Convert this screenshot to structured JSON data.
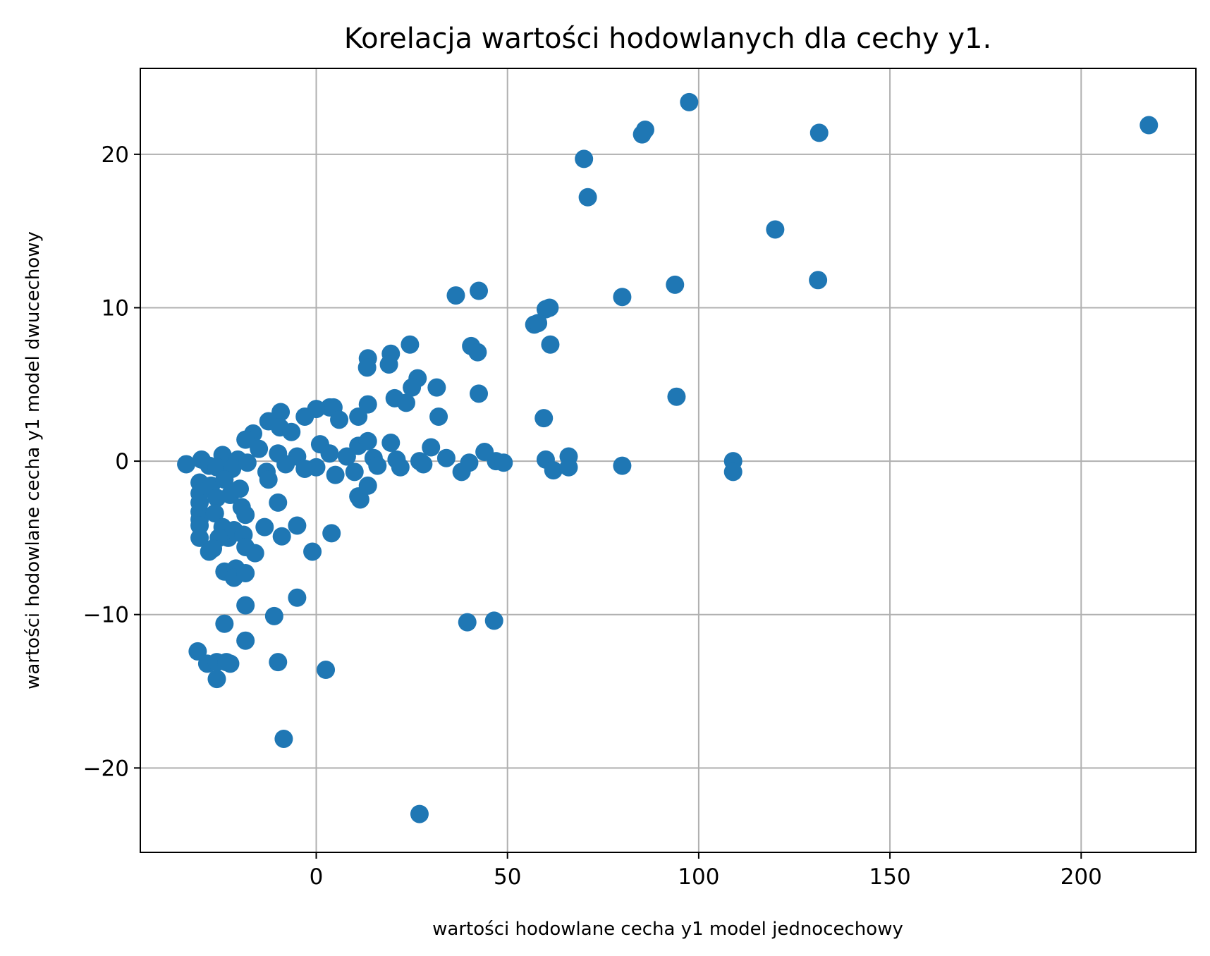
{
  "chart_data": {
    "type": "scatter",
    "title": "Korelacja wartości hodowlanych dla cechy y1.",
    "xlabel": "wartości hodowlane cecha y1 model jednocechowy",
    "ylabel": "wartości hodowlane cecha y1 model dwucechowy",
    "xlim": [
      -46,
      230
    ],
    "ylim": [
      -25.5,
      25.6
    ],
    "xticks": [
      0,
      50,
      100,
      150,
      200
    ],
    "yticks": [
      -20,
      -10,
      0,
      10,
      20
    ],
    "xtick_labels": [
      "0",
      "50",
      "100",
      "150",
      "200"
    ],
    "ytick_labels": [
      "−20",
      "−10",
      "0",
      "10",
      "20"
    ],
    "grid": true,
    "color": "#1f77b4",
    "points": [
      [
        217.7,
        21.9
      ],
      [
        97.5,
        23.4
      ],
      [
        86,
        21.6
      ],
      [
        85.2,
        21.3
      ],
      [
        131.5,
        21.4
      ],
      [
        70,
        19.7
      ],
      [
        71,
        17.2
      ],
      [
        120,
        15.1
      ],
      [
        93.8,
        11.5
      ],
      [
        131.2,
        11.8
      ],
      [
        80,
        10.7
      ],
      [
        42.5,
        11.1
      ],
      [
        36.5,
        10.8
      ],
      [
        61,
        10
      ],
      [
        60,
        9.9
      ],
      [
        57,
        8.9
      ],
      [
        58,
        9
      ],
      [
        61.2,
        7.6
      ],
      [
        40.5,
        7.5
      ],
      [
        42.2,
        7.1
      ],
      [
        24.5,
        7.6
      ],
      [
        13.5,
        6.7
      ],
      [
        13.3,
        6.1
      ],
      [
        19.5,
        7.0
      ],
      [
        19.0,
        6.3
      ],
      [
        26.5,
        5.4
      ],
      [
        25.0,
        4.8
      ],
      [
        31.5,
        4.8
      ],
      [
        20.5,
        4.1
      ],
      [
        23.5,
        3.8
      ],
      [
        42.5,
        4.4
      ],
      [
        94.2,
        4.2
      ],
      [
        32,
        2.9
      ],
      [
        59.5,
        2.8
      ],
      [
        11,
        2.9
      ],
      [
        13.5,
        3.7
      ],
      [
        3.5,
        3.5
      ],
      [
        0,
        3.4
      ],
      [
        4.5,
        3.5
      ],
      [
        -3,
        2.9
      ],
      [
        6,
        2.7
      ],
      [
        -9.3,
        3.2
      ],
      [
        -12.5,
        2.6
      ],
      [
        -9.5,
        2.2
      ],
      [
        -16.5,
        1.8
      ],
      [
        -18.5,
        1.4
      ],
      [
        -6.5,
        1.9
      ],
      [
        1.0,
        1.1
      ],
      [
        11,
        1
      ],
      [
        13.5,
        1.3
      ],
      [
        19.5,
        1.2
      ],
      [
        30,
        0.9
      ],
      [
        44,
        0.6
      ],
      [
        -24.5,
        0.4
      ],
      [
        -20.5,
        0.1
      ],
      [
        -15,
        0.8
      ],
      [
        -10,
        0.5
      ],
      [
        -5,
        0.3
      ],
      [
        3.5,
        0.5
      ],
      [
        8,
        0.3
      ],
      [
        15,
        0.2
      ],
      [
        21,
        0.1
      ],
      [
        27,
        0
      ],
      [
        34,
        0.2
      ],
      [
        40,
        -0.1
      ],
      [
        47,
        0
      ],
      [
        49,
        -0.1
      ],
      [
        60,
        0.1
      ],
      [
        66,
        0.3
      ],
      [
        109,
        0
      ],
      [
        -34,
        -0.2
      ],
      [
        -30,
        0.1
      ],
      [
        -28,
        -0.3
      ],
      [
        -26,
        -0.4
      ],
      [
        -22,
        -0.5
      ],
      [
        -18,
        -0.1
      ],
      [
        -13,
        -0.7
      ],
      [
        -8,
        -0.2
      ],
      [
        -3,
        -0.5
      ],
      [
        0,
        -0.4
      ],
      [
        5,
        -0.9
      ],
      [
        10,
        -0.7
      ],
      [
        16,
        -0.3
      ],
      [
        22,
        -0.4
      ],
      [
        28,
        -0.2
      ],
      [
        38,
        -0.7
      ],
      [
        62,
        -0.6
      ],
      [
        66,
        -0.4
      ],
      [
        80,
        -0.3
      ],
      [
        109,
        -0.7
      ],
      [
        -30.5,
        -1.4
      ],
      [
        -30.5,
        -2.1
      ],
      [
        -30.5,
        -2.7
      ],
      [
        -30.5,
        -3.3
      ],
      [
        -30.5,
        -3.8
      ],
      [
        -30.5,
        -4.2
      ],
      [
        -30.5,
        -5
      ],
      [
        -27.5,
        -1.6
      ],
      [
        -26,
        -2.4
      ],
      [
        -24,
        -1.2
      ],
      [
        -22.5,
        -2.2
      ],
      [
        -20,
        -1.8
      ],
      [
        -19.5,
        -3.0
      ],
      [
        -18.5,
        -3.5
      ],
      [
        -26.5,
        -3.4
      ],
      [
        -24.5,
        -4.3
      ],
      [
        -23,
        -5.0
      ],
      [
        -21.5,
        -4.5
      ],
      [
        -19,
        -4.8
      ],
      [
        -25.5,
        -5.0
      ],
      [
        -28,
        -5.9
      ],
      [
        -27,
        -5.7
      ],
      [
        -18.5,
        -5.6
      ],
      [
        -16,
        -6
      ],
      [
        -13.5,
        -4.3
      ],
      [
        -9,
        -4.9
      ],
      [
        -5,
        -4.2
      ],
      [
        -1,
        -5.9
      ],
      [
        4,
        -4.7
      ],
      [
        -12.5,
        -1.2
      ],
      [
        -10,
        -2.7
      ],
      [
        11,
        -2.3
      ],
      [
        11.5,
        -2.5
      ],
      [
        13.5,
        -1.6
      ],
      [
        -24,
        -7.2
      ],
      [
        -21,
        -7.0
      ],
      [
        -21.5,
        -7.6
      ],
      [
        -18.5,
        -7.3
      ],
      [
        -18.5,
        -9.4
      ],
      [
        -5,
        -8.9
      ],
      [
        -24,
        -10.6
      ],
      [
        -11,
        -10.1
      ],
      [
        -18.5,
        -11.7
      ],
      [
        39.5,
        -10.5
      ],
      [
        46.5,
        -10.4
      ],
      [
        -31,
        -12.4
      ],
      [
        -28.5,
        -13.2
      ],
      [
        -26,
        -13.1
      ],
      [
        -23.5,
        -13.1
      ],
      [
        -22.5,
        -13.2
      ],
      [
        -10,
        -13.1
      ],
      [
        2.5,
        -13.6
      ],
      [
        -26,
        -14.2
      ],
      [
        -8.5,
        -18.1
      ],
      [
        27,
        -23.0
      ]
    ]
  }
}
